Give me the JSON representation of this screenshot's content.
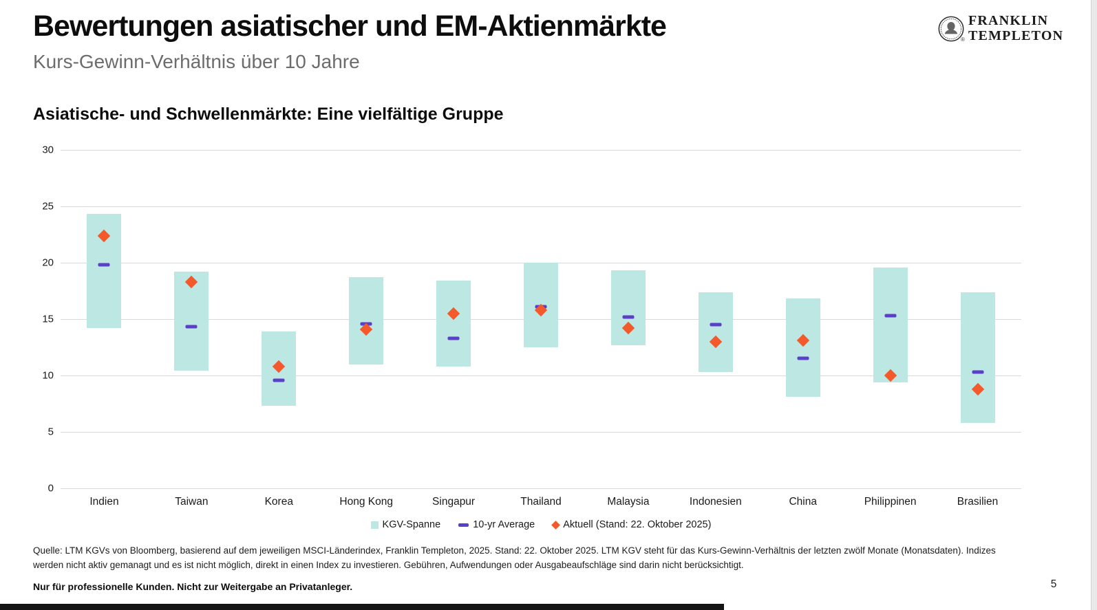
{
  "page": {
    "title": "Bewertungen asiatischer und EM-Aktienmärkte",
    "subtitle": "Kurs-Gewinn-Verhältnis über 10 Jahre",
    "section_heading": "Asiatische- und Schwellenmärkte: Eine vielfältige Gruppe",
    "page_number": "5"
  },
  "logo": {
    "line1": "FRANKLIN",
    "line2": "TEMPLETON",
    "icon": "franklin-portrait-icon",
    "registered_mark": "®"
  },
  "legend": {
    "items": [
      {
        "label": "KGV-Spanne",
        "marker": "teal-square",
        "color": "#bde7e3"
      },
      {
        "label": "10-yr Average",
        "marker": "purple-dash",
        "color": "#5a3fc8"
      },
      {
        "label": "Aktuell (Stand: 22. Oktober 2025)",
        "marker": "orange-diamond",
        "color": "#f4592b"
      }
    ]
  },
  "footnotes": {
    "source": "Quelle: LTM KGVs von Bloomberg, basierend auf dem jeweiligen MSCI-Länderindex, Franklin Templeton, 2025. Stand: 22. Oktober 2025. LTM KGV steht für das Kurs-Gewinn-Verhältnis der letzten zwölf Monate (Monatsdaten). Indizes werden nicht aktiv gemanagt und es ist nicht möglich, direkt in einen Index zu investieren. Gebühren, Aufwendungen oder Ausgabeaufschläge sind darin nicht berücksichtigt.",
    "compliance": "Nur für professionelle Kunden. Nicht zur Weitergabe an Privatanleger."
  },
  "colors": {
    "range_bar": "#bde7e3",
    "average_dash": "#5a3fc8",
    "current_diamond": "#f4592b",
    "gridline": "#d9d9d9",
    "subtitle_gray": "#6c6c6c"
  },
  "chart_data": {
    "type": "bar",
    "subtype": "floating-range-bar-with-markers",
    "title": "Asiatische- und Schwellenmärkte: Eine vielfältige Gruppe",
    "xlabel": "",
    "ylabel": "",
    "ylim": [
      0,
      30
    ],
    "yticks": [
      0,
      5,
      10,
      15,
      20,
      25,
      30
    ],
    "grid": "horizontal",
    "legend_position": "bottom-center",
    "categories": [
      "Indien",
      "Taiwan",
      "Korea",
      "Hong Kong",
      "Singapur",
      "Thailand",
      "Malaysia",
      "Indonesien",
      "China",
      "Philippinen",
      "Brasilien"
    ],
    "series": [
      {
        "name": "KGV-Spanne",
        "type": "range",
        "low": [
          14.2,
          10.4,
          7.3,
          11.0,
          10.8,
          12.5,
          12.7,
          10.3,
          8.1,
          9.4,
          5.8
        ],
        "high": [
          24.3,
          19.2,
          13.9,
          18.7,
          18.4,
          20.0,
          19.3,
          17.4,
          16.8,
          19.6,
          17.4
        ]
      },
      {
        "name": "10-yr Average",
        "type": "dash",
        "values": [
          19.8,
          14.3,
          9.6,
          14.6,
          13.3,
          16.1,
          15.2,
          14.5,
          11.5,
          15.3,
          10.3
        ]
      },
      {
        "name": "Aktuell (Stand: 22. Oktober 2025)",
        "type": "diamond",
        "values": [
          22.4,
          18.3,
          10.8,
          14.1,
          15.5,
          15.8,
          14.2,
          13.0,
          13.1,
          10.0,
          8.8
        ]
      }
    ]
  }
}
